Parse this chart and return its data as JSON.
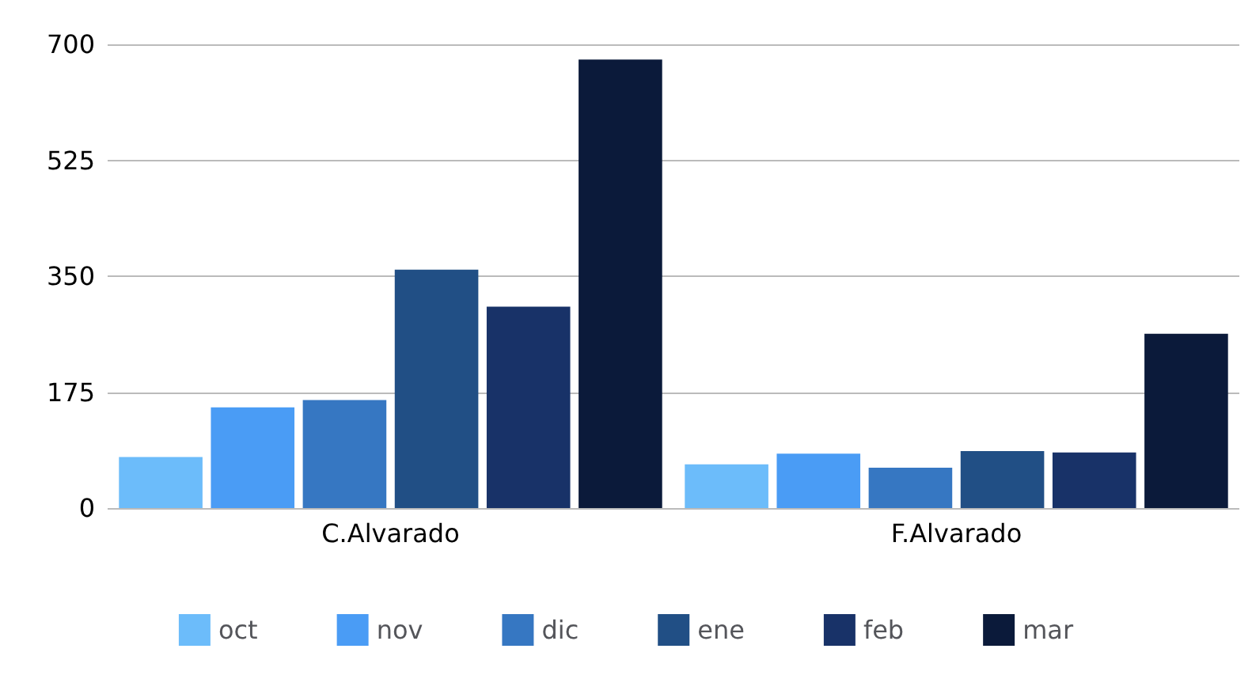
{
  "chart_data": {
    "type": "bar",
    "categories": [
      "C.Alvarado",
      "F.Alvarado"
    ],
    "series": [
      {
        "name": "oct",
        "color": "#6cbcfa",
        "values": [
          77,
          66
        ]
      },
      {
        "name": "nov",
        "color": "#4a9cf5",
        "values": [
          152,
          82
        ]
      },
      {
        "name": "dic",
        "color": "#3677c2",
        "values": [
          163,
          61
        ]
      },
      {
        "name": "ene",
        "color": "#214f85",
        "values": [
          360,
          86
        ]
      },
      {
        "name": "feb",
        "color": "#183268",
        "values": [
          304,
          84
        ]
      },
      {
        "name": "mar",
        "color": "#0b1a3a",
        "values": [
          677,
          263
        ]
      }
    ],
    "ylim": [
      0,
      700
    ],
    "yticks": [
      0,
      175,
      350,
      525,
      700
    ],
    "grid": "y",
    "legend": "bottom"
  }
}
